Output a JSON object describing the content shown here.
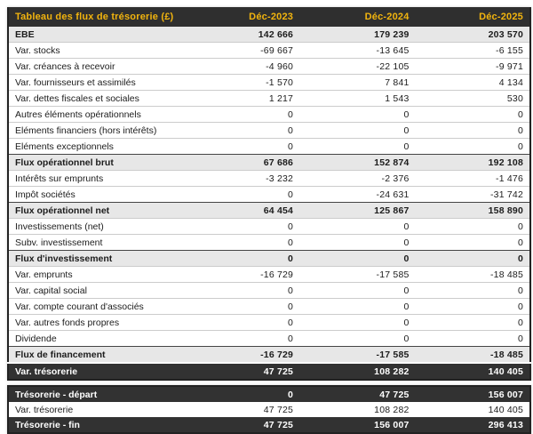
{
  "colors": {
    "accent_gold": "#F2B40E",
    "header_bg": "#2f2f2f",
    "dark_row_bg": "#323232",
    "subtotal_row_bg": "#e7e7e7",
    "border_dark": "#222222",
    "row_separator": "#cccccc"
  },
  "chart_data": {
    "type": "table",
    "title": "Tableau des flux de trésorerie (£)",
    "columns": [
      "Déc-2023",
      "Déc-2024",
      "Déc-2025"
    ],
    "rows": [
      {
        "label": "EBE",
        "values": [
          "142 666",
          "179 239",
          "203 570"
        ],
        "style": "subtotal"
      },
      {
        "label": "Var. stocks",
        "values": [
          "-69 667",
          "-13 645",
          "-6 155"
        ],
        "style": "normal"
      },
      {
        "label": "Var. créances à recevoir",
        "values": [
          "-4 960",
          "-22 105",
          "-9 971"
        ],
        "style": "normal"
      },
      {
        "label": "Var. fournisseurs et assimilés",
        "values": [
          "-1 570",
          "7 841",
          "4 134"
        ],
        "style": "normal"
      },
      {
        "label": "Var. dettes fiscales et sociales",
        "values": [
          "1 217",
          "1 543",
          "530"
        ],
        "style": "normal"
      },
      {
        "label": "Autres éléments opérationnels",
        "values": [
          "0",
          "0",
          "0"
        ],
        "style": "normal"
      },
      {
        "label": "Eléments financiers (hors intérêts)",
        "values": [
          "0",
          "0",
          "0"
        ],
        "style": "normal"
      },
      {
        "label": "Eléments exceptionnels",
        "values": [
          "0",
          "0",
          "0"
        ],
        "style": "normal"
      },
      {
        "label": "Flux opérationnel brut",
        "values": [
          "67 686",
          "152 874",
          "192 108"
        ],
        "style": "subtotal"
      },
      {
        "label": "Intérêts sur emprunts",
        "values": [
          "-3 232",
          "-2 376",
          "-1 476"
        ],
        "style": "normal"
      },
      {
        "label": "Impôt sociétés",
        "values": [
          "0",
          "-24 631",
          "-31 742"
        ],
        "style": "normal"
      },
      {
        "label": "Flux opérationnel net",
        "values": [
          "64 454",
          "125 867",
          "158 890"
        ],
        "style": "subtotal"
      },
      {
        "label": "Investissements (net)",
        "values": [
          "0",
          "0",
          "0"
        ],
        "style": "normal"
      },
      {
        "label": "Subv. investissement",
        "values": [
          "0",
          "0",
          "0"
        ],
        "style": "normal"
      },
      {
        "label": "Flux d'investissement",
        "values": [
          "0",
          "0",
          "0"
        ],
        "style": "subtotal"
      },
      {
        "label": "Var. emprunts",
        "values": [
          "-16 729",
          "-17 585",
          "-18 485"
        ],
        "style": "normal"
      },
      {
        "label": "Var. capital social",
        "values": [
          "0",
          "0",
          "0"
        ],
        "style": "normal"
      },
      {
        "label": "Var. compte courant d'associés",
        "values": [
          "0",
          "0",
          "0"
        ],
        "style": "normal"
      },
      {
        "label": "Var. autres fonds propres",
        "values": [
          "0",
          "0",
          "0"
        ],
        "style": "normal"
      },
      {
        "label": "Dividende",
        "values": [
          "0",
          "0",
          "0"
        ],
        "style": "normal"
      },
      {
        "label": "Flux de financement",
        "values": [
          "-16 729",
          "-17 585",
          "-18 485"
        ],
        "style": "subtotal"
      },
      {
        "label": "Var. trésorerie",
        "values": [
          "47 725",
          "108 282",
          "140 405"
        ],
        "style": "dark"
      }
    ],
    "summary_rows": [
      {
        "label": "Trésorerie - départ",
        "values": [
          "0",
          "47 725",
          "156 007"
        ],
        "style": "dark"
      },
      {
        "label": "Var. trésorerie",
        "values": [
          "47 725",
          "108 282",
          "140 405"
        ],
        "style": "normal"
      },
      {
        "label": "Trésorerie - fin",
        "values": [
          "47 725",
          "156 007",
          "296 413"
        ],
        "style": "dark"
      }
    ]
  }
}
